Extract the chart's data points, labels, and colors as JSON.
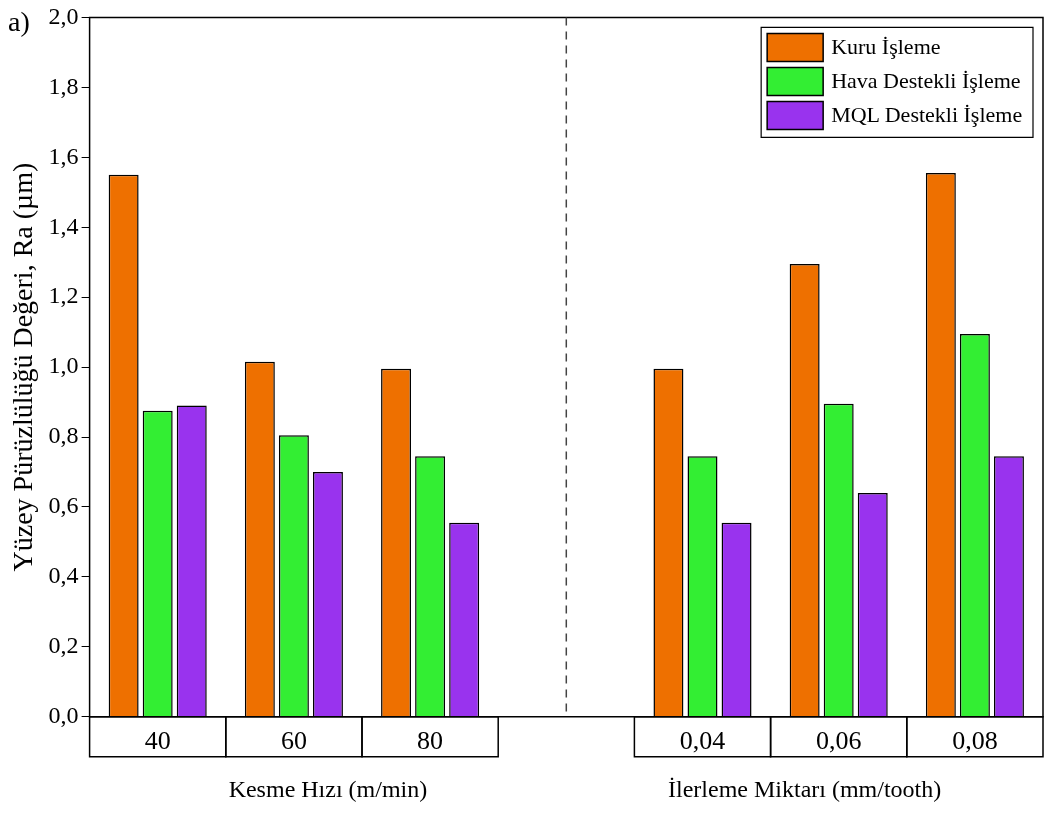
{
  "chart_data": {
    "type": "bar",
    "title": "a)",
    "ylabel": "Yüzey Pürüzlülüğü Değeri, Ra (µm)",
    "categories": [
      "40",
      "60",
      "80",
      null,
      "0,04",
      "0,06",
      "0,08"
    ],
    "series": [
      {
        "name": "Kuru İşleme",
        "color": "#ee7000",
        "values": [
          1.55,
          1.015,
          0.995,
          null,
          0.995,
          1.295,
          1.555
        ]
      },
      {
        "name": "Hava Destekli İşleme",
        "color": "#33ee33",
        "values": [
          0.875,
          0.805,
          0.745,
          null,
          0.745,
          0.895,
          1.095
        ]
      },
      {
        "name": "MQL Destekli İşleme",
        "color": "#9933ee",
        "values": [
          0.89,
          0.7,
          0.555,
          null,
          0.555,
          0.64,
          0.745
        ]
      }
    ],
    "ylim": [
      0,
      2
    ],
    "yticks": [
      {
        "value": 0,
        "label": "0,0"
      },
      {
        "value": 0.2,
        "label": "0,2"
      },
      {
        "value": 0.4,
        "label": "0,4"
      },
      {
        "value": 0.6,
        "label": "0,6"
      },
      {
        "value": 0.8,
        "label": "0,8"
      },
      {
        "value": 1,
        "label": "1,0"
      },
      {
        "value": 1.2,
        "label": "1,2"
      },
      {
        "value": 1.4,
        "label": "1,4"
      },
      {
        "value": 1.6,
        "label": "1,6"
      },
      {
        "value": 1.8,
        "label": "1,8"
      },
      {
        "value": 2,
        "label": "2,0"
      }
    ],
    "legend": "top right",
    "annotations": [
      "Kesme Hızı (m/min)",
      "İlerleme Miktarı (mm/tooth)"
    ]
  }
}
